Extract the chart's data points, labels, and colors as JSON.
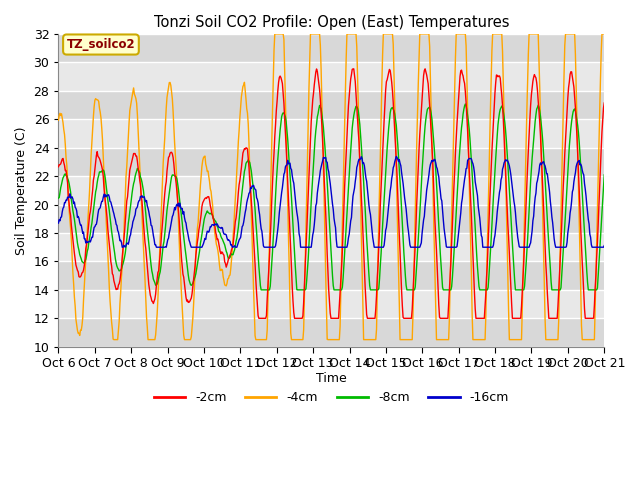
{
  "title": "Tonzi Soil CO2 Profile: Open (East) Temperatures",
  "xlabel": "Time",
  "ylabel": "Soil Temperature (C)",
  "ylim": [
    10,
    32
  ],
  "xlim": [
    0,
    360
  ],
  "annotation": "TZ_soilco2",
  "colors": {
    "2cm": "#ff0000",
    "4cm": "#ffa500",
    "8cm": "#00bb00",
    "16cm": "#0000cc"
  },
  "legend": [
    "-2cm",
    "-4cm",
    "-8cm",
    "-16cm"
  ],
  "xtick_labels": [
    "Oct 6",
    "Oct 7",
    "Oct 8",
    "Oct 9",
    "Oct 10",
    "Oct 11",
    "Oct 12",
    "Oct 13",
    "Oct 14",
    "Oct 15",
    "Oct 16",
    "Oct 17",
    "Oct 18",
    "Oct 19",
    "Oct 20",
    "Oct 21"
  ],
  "xtick_positions": [
    0,
    24,
    48,
    72,
    96,
    120,
    144,
    168,
    192,
    216,
    240,
    264,
    288,
    312,
    336,
    360
  ],
  "yticks": [
    10,
    12,
    14,
    16,
    18,
    20,
    22,
    24,
    26,
    28,
    30,
    32
  ],
  "n_points": 720
}
